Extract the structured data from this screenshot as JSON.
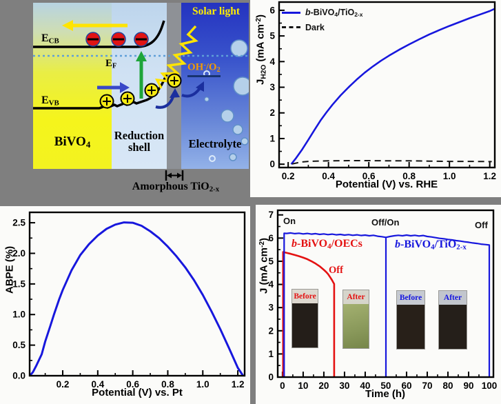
{
  "figure": {
    "background": "#7f7f7f",
    "panel_background": "#fbfbf9",
    "accent_blue": "#1717dd",
    "accent_red": "#e41212"
  },
  "diagram": {
    "solar_light": "Solar light",
    "e_cb": "E_{CB}",
    "e_f": "E_{F}",
    "e_vb": "E_{VB}",
    "oh_o2": "OH^{-}/O_{2}",
    "bivo4": "BiVO_{4}",
    "reduction_shell": "Reduction shell",
    "electrolyte": "Electrolyte",
    "amorphous": "Amorphous TiO_{2-x}",
    "colors": {
      "bivo4_region": "#f5f41c",
      "shell_region": "#d2e2f4",
      "tio2x_strip": "#8e9196",
      "electrolyte_top": "#2433c0",
      "electrolyte_bottom": "#93b2e8",
      "electron": "#e01414",
      "hole": "#f5ea12",
      "light_arrow": "#ffe400",
      "transfer_arrow": "#1b2f9e",
      "excitation_arrow": "#1ea53a"
    }
  },
  "chart_data": [
    {
      "id": "jv",
      "type": "line",
      "title": "",
      "xlabel": "Potential (V) vs. RHE",
      "ylabel": "J_{H2O} (mA cm^{-2})",
      "xlim": [
        0.155,
        1.225
      ],
      "ylim": [
        -0.13,
        6.32
      ],
      "xtick_vals": [
        0.2,
        0.4,
        0.6,
        0.8,
        1.0,
        1.2
      ],
      "xtick_labels": [
        "0.2",
        "0.4",
        "0.6",
        "0.8",
        "1.0",
        "1.2"
      ],
      "ytick_vals": [
        0,
        1,
        2,
        3,
        4,
        5,
        6
      ],
      "ytick_labels": [
        "0",
        "1",
        "2",
        "3",
        "4",
        "5",
        "6"
      ],
      "xminor": 0.1,
      "yminor": 0.5,
      "grid": false,
      "legend_position": "top-left",
      "legend": [
        {
          "label": "*{b}-BiVO_{4}/TiO_{2-x}",
          "color": "#1717dd",
          "dashed": false
        },
        {
          "label": "Dark",
          "color": "#141414",
          "dashed": true
        }
      ],
      "series": [
        {
          "name": "b-BiVO4/TiO2-x",
          "color": "#1717dd",
          "width": 2.6,
          "points": [
            [
              0.215,
              0
            ],
            [
              0.24,
              0.25
            ],
            [
              0.27,
              0.58
            ],
            [
              0.3,
              0.95
            ],
            [
              0.33,
              1.33
            ],
            [
              0.36,
              1.7
            ],
            [
              0.39,
              2.02
            ],
            [
              0.42,
              2.32
            ],
            [
              0.46,
              2.68
            ],
            [
              0.5,
              3.0
            ],
            [
              0.54,
              3.3
            ],
            [
              0.58,
              3.57
            ],
            [
              0.62,
              3.81
            ],
            [
              0.66,
              4.03
            ],
            [
              0.7,
              4.23
            ],
            [
              0.75,
              4.46
            ],
            [
              0.8,
              4.67
            ],
            [
              0.85,
              4.87
            ],
            [
              0.9,
              5.06
            ],
            [
              0.95,
              5.23
            ],
            [
              1.0,
              5.39
            ],
            [
              1.05,
              5.54
            ],
            [
              1.1,
              5.69
            ],
            [
              1.15,
              5.83
            ],
            [
              1.2,
              5.97
            ],
            [
              1.225,
              6.06
            ]
          ]
        },
        {
          "name": "Dark",
          "color": "#141414",
          "width": 2,
          "dash": "9 6",
          "points": [
            [
              0.22,
              0.01
            ],
            [
              0.26,
              0.08
            ],
            [
              0.3,
              0.11
            ],
            [
              0.4,
              0.13
            ],
            [
              0.5,
              0.14
            ],
            [
              0.6,
              0.14
            ],
            [
              0.7,
              0.13
            ],
            [
              0.8,
              0.13
            ],
            [
              0.9,
              0.12
            ],
            [
              1.0,
              0.11
            ],
            [
              1.1,
              0.11
            ],
            [
              1.21,
              0.1
            ]
          ]
        }
      ]
    },
    {
      "id": "abpe",
      "type": "line",
      "title": "",
      "xlabel": "Potential (V) vs. Pt",
      "ylabel": "ABPE (%)",
      "xlim": [
        0.011,
        1.239
      ],
      "ylim": [
        0,
        2.67
      ],
      "xtick_vals": [
        0.2,
        0.4,
        0.6,
        0.8,
        1.0,
        1.2
      ],
      "xtick_labels": [
        "0.2",
        "0.4",
        "0.6",
        "0.8",
        "1.0",
        "1.2"
      ],
      "ytick_vals": [
        0,
        0.5,
        1.0,
        1.5,
        2.0,
        2.5
      ],
      "ytick_labels": [
        "0.0",
        "0.5",
        "1.0",
        "1.5",
        "2.0",
        "2.5"
      ],
      "xminor": 0.1,
      "yminor": 0.25,
      "grid": false,
      "legend": [],
      "series": [
        {
          "name": "ABPE",
          "color": "#1717dd",
          "width": 3,
          "points": [
            [
              0.012,
              0.0
            ],
            [
              0.03,
              0.06
            ],
            [
              0.05,
              0.17
            ],
            [
              0.08,
              0.35
            ],
            [
              0.1,
              0.56
            ],
            [
              0.13,
              0.82
            ],
            [
              0.15,
              1.0
            ],
            [
              0.18,
              1.25
            ],
            [
              0.2,
              1.4
            ],
            [
              0.25,
              1.72
            ],
            [
              0.3,
              1.97
            ],
            [
              0.35,
              2.15
            ],
            [
              0.4,
              2.29
            ],
            [
              0.45,
              2.4
            ],
            [
              0.5,
              2.47
            ],
            [
              0.55,
              2.505
            ],
            [
              0.6,
              2.5
            ],
            [
              0.65,
              2.45
            ],
            [
              0.7,
              2.36
            ],
            [
              0.75,
              2.25
            ],
            [
              0.8,
              2.11
            ],
            [
              0.85,
              1.95
            ],
            [
              0.9,
              1.77
            ],
            [
              0.95,
              1.56
            ],
            [
              1.0,
              1.32
            ],
            [
              1.05,
              1.05
            ],
            [
              1.1,
              0.76
            ],
            [
              1.15,
              0.45
            ],
            [
              1.2,
              0.13
            ],
            [
              1.23,
              0.0
            ]
          ]
        }
      ]
    },
    {
      "id": "stability",
      "type": "line",
      "title": "",
      "xlabel": "Time (h)",
      "ylabel": "J (mA cm^{-2})",
      "xlim": [
        -2.3,
        102
      ],
      "ylim": [
        0,
        7.2
      ],
      "xtick_vals": [
        0,
        10,
        20,
        30,
        40,
        50,
        60,
        70,
        80,
        90,
        100
      ],
      "xtick_labels": [
        "0",
        "10",
        "20",
        "30",
        "40",
        "50",
        "60",
        "70",
        "80",
        "90",
        "100"
      ],
      "ytick_vals": [
        0,
        1,
        2,
        3,
        4,
        5,
        6,
        7
      ],
      "ytick_labels": [
        "0",
        "1",
        "2",
        "3",
        "4",
        "5",
        "6",
        "7"
      ],
      "xminor": 5,
      "yminor": 0.5,
      "grid": false,
      "annotations": {
        "on": "On",
        "off_on": "Off/On",
        "off": "Off",
        "red_off": "Off",
        "red_series_label": "*{b}-BiVO_{4}/OECs",
        "blue_series_label": "*{b}-BiVO_{4}/TiO_{2-x}"
      },
      "insets": [
        {
          "label": "Before",
          "color": "#e41212",
          "body": "#241e19"
        },
        {
          "label": "After",
          "color": "#e41212",
          "body": "#8b9a5c"
        },
        {
          "label": "Before",
          "color": "#1414e0",
          "body": "#282019"
        },
        {
          "label": "After",
          "color": "#1414e0",
          "body": "#251f1a"
        }
      ],
      "series": [
        {
          "name": "b-BiVO4/OECs",
          "color": "#e41212",
          "width": 2.6,
          "points": [
            [
              0.3,
              0
            ],
            [
              0.3,
              5.4
            ],
            [
              2,
              5.36
            ],
            [
              4,
              5.32
            ],
            [
              6,
              5.27
            ],
            [
              8,
              5.22
            ],
            [
              10,
              5.16
            ],
            [
              12,
              5.09
            ],
            [
              14,
              5.0
            ],
            [
              16,
              4.9
            ],
            [
              18,
              4.78
            ],
            [
              20,
              4.63
            ],
            [
              21,
              4.55
            ],
            [
              22,
              4.45
            ],
            [
              23,
              4.32
            ],
            [
              24,
              4.18
            ],
            [
              24.5,
              4.1
            ],
            [
              25,
              4.02
            ],
            [
              25,
              0
            ]
          ]
        },
        {
          "name": "b-BiVO4/TiO2-x",
          "color": "#1717dd",
          "width": 2.2,
          "points": [
            [
              0.8,
              0
            ],
            [
              0.8,
              6.21
            ],
            [
              2,
              6.2
            ],
            [
              4,
              6.22
            ],
            [
              6,
              6.19
            ],
            [
              8,
              6.21
            ],
            [
              10,
              6.18
            ],
            [
              12,
              6.2
            ],
            [
              14,
              6.17
            ],
            [
              16,
              6.19
            ],
            [
              18,
              6.16
            ],
            [
              20,
              6.18
            ],
            [
              22,
              6.15
            ],
            [
              24,
              6.17
            ],
            [
              26,
              6.14
            ],
            [
              28,
              6.16
            ],
            [
              30,
              6.13
            ],
            [
              32,
              6.15
            ],
            [
              34,
              6.12
            ],
            [
              36,
              6.14
            ],
            [
              38,
              6.11
            ],
            [
              40,
              6.13
            ],
            [
              42,
              6.1
            ],
            [
              44,
              6.12
            ],
            [
              46,
              6.08
            ],
            [
              48,
              6.06
            ],
            [
              50,
              6.03
            ],
            [
              50,
              0
            ],
            [
              50,
              6.03
            ],
            [
              52,
              6.07
            ],
            [
              54,
              6.1
            ],
            [
              56,
              6.12
            ],
            [
              58,
              6.1
            ],
            [
              60,
              6.13
            ],
            [
              62,
              6.1
            ],
            [
              64,
              6.12
            ],
            [
              66,
              6.09
            ],
            [
              68,
              6.11
            ],
            [
              70,
              6.07
            ],
            [
              72,
              6.05
            ],
            [
              74,
              6.02
            ],
            [
              76,
              5.99
            ],
            [
              78,
              5.97
            ],
            [
              80,
              5.94
            ],
            [
              82,
              5.92
            ],
            [
              84,
              5.89
            ],
            [
              86,
              5.87
            ],
            [
              88,
              5.84
            ],
            [
              90,
              5.82
            ],
            [
              92,
              5.79
            ],
            [
              94,
              5.77
            ],
            [
              96,
              5.74
            ],
            [
              98,
              5.72
            ],
            [
              100,
              5.7
            ],
            [
              100,
              0
            ]
          ]
        }
      ]
    }
  ]
}
